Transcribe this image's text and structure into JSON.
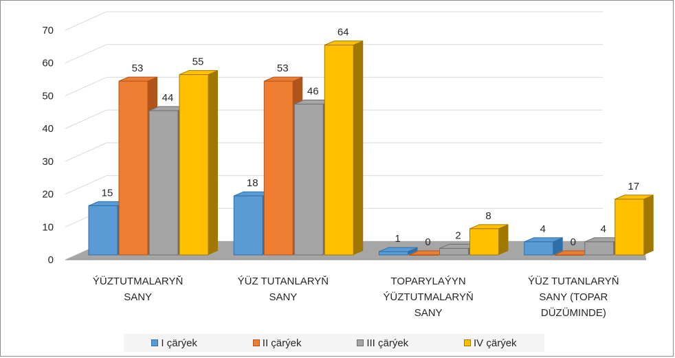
{
  "chart_data": {
    "type": "bar",
    "categories": [
      [
        "ÝÜZTUTMALARYŇ",
        "SANY"
      ],
      [
        "ÝÜZ TUTANLARYŇ",
        "SANY"
      ],
      [
        "TOPARYLAÝYN",
        "ÝÜZTUTMALARYŇ",
        "SANY"
      ],
      [
        "ÝÜZ TUTANLARYŇ",
        "SANY (TOPAR",
        "DÜZÜMINDE)"
      ]
    ],
    "series": [
      {
        "name": "I çärýek",
        "values": [
          15,
          18,
          1,
          4
        ],
        "color": "#5b9bd5",
        "dark": "#2f6fa8"
      },
      {
        "name": "II çärýek",
        "values": [
          53,
          53,
          0,
          0
        ],
        "color": "#ed7d31",
        "dark": "#b0541a"
      },
      {
        "name": "III çärýek",
        "values": [
          44,
          46,
          2,
          4
        ],
        "color": "#a5a5a5",
        "dark": "#6e6e6e"
      },
      {
        "name": "IV çärýek",
        "values": [
          55,
          64,
          8,
          17
        ],
        "color": "#ffc000",
        "dark": "#a07800"
      }
    ],
    "ylim": [
      0,
      70
    ],
    "yticks": [
      0,
      10,
      20,
      30,
      40,
      50,
      60,
      70
    ],
    "grid": true,
    "legend_position": "bottom"
  }
}
